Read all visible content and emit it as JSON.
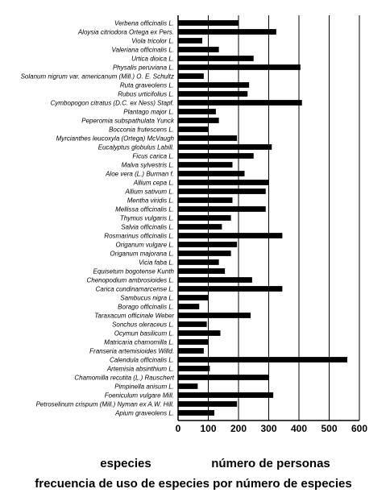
{
  "chart_data": {
    "type": "bar",
    "orientation": "horizontal",
    "title": "frecuencia de uso de especies por número de especies",
    "xlabel": "número de personas",
    "ylabel": "especies",
    "xlim": [
      0,
      600
    ],
    "xticks": [
      "0",
      "100",
      "200",
      "300",
      "400",
      "500",
      "600"
    ],
    "grid": "vertical",
    "bar_color": "#000000",
    "categories": [
      "Verbena officinalis L.",
      "Aloysia citriodora Ortega ex Pers.",
      "Viola tricolor L.",
      "Valeriana officinalis L.",
      "Urtica dioica  L.",
      "Physalis peruviana L.",
      "Solanum nigrum var. americanum (Mill.) O. E. Schultz",
      "Ruta graveolens L.",
      "Rubus urticifolius L.",
      "Cymbopogon citratus (D.C. ex Ness) Stapf.",
      "Plantago major L.",
      "Peperomia subspathulata Yunck",
      "Bocconia  frutescens L.",
      "Myrcianthes leucoxyla (Ortega) McVaugh",
      "Eucalyptus globulus Labill.",
      "Ficus carica L.",
      "Malva sylvestris L.",
      "Aloe vera (L.) Burman f.",
      "Allium cepa L.",
      "Allium sativum L.",
      "Mentha viridis L.",
      "Mellissa officinalis L.",
      "Thymus vulgaris L.",
      "Salvia officinalis L.",
      "Rosmarinus officinalis L.",
      "Origanum vulgare L.",
      "Origanum majorana L.",
      "Vicia faba L.",
      "Equisetum bogotense Kunth",
      "Chenopodium ambrosioides L.",
      "Carica cundinamarcense L.",
      "Sambucus nigra L.",
      "Borago officinalis L.",
      "Taraxacum officinale Weber",
      "Sonchus oleraceus L.",
      "Ocymun basilicum L.",
      "Matricaria chamomilla  L.",
      "Franseria artemisioides Willd.",
      "Calendula officinalis L.",
      "Artemisia absinthium L.",
      "Chamomilla recutita (L.) Rauschert",
      "Pimpinella anisum L.",
      "Foeniculum vulgare Mill.",
      "Petroselinum crispum (Mill.) Nyman ex A.W. Hill.",
      "Apium graveolens L."
    ],
    "values": [
      200,
      325,
      80,
      135,
      250,
      405,
      85,
      235,
      230,
      410,
      125,
      135,
      100,
      195,
      310,
      250,
      180,
      220,
      300,
      290,
      180,
      290,
      175,
      145,
      345,
      195,
      175,
      135,
      155,
      245,
      345,
      100,
      70,
      240,
      95,
      140,
      100,
      85,
      560,
      105,
      300,
      65,
      315,
      195,
      120
    ]
  }
}
